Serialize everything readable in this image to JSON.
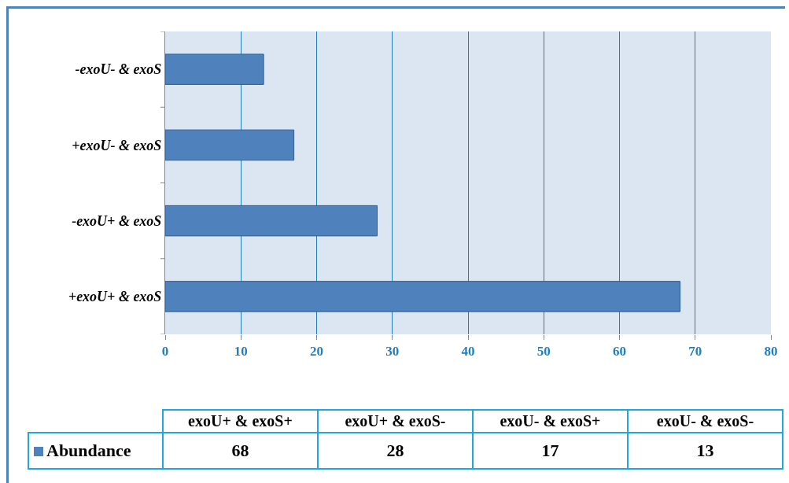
{
  "chart_data": [
    {
      "type": "bar",
      "orientation": "horizontal",
      "categories": [
        "-exoU- & exoS",
        "+exoU- & exoS",
        "-exoU+ & exoS",
        "+exoU+ & exoS"
      ],
      "series": [
        {
          "color": "#4f81bd",
          "values": [
            13,
            17,
            28,
            68
          ]
        }
      ],
      "xlim": [
        0,
        80
      ],
      "xticks": [
        0,
        10,
        20,
        30,
        40,
        50,
        60,
        70,
        80
      ],
      "grid": "x"
    },
    {
      "type": "other",
      "categories": [
        "exoU+ & exoS+",
        "exoU+ & exoS-",
        "exoU- & exoS+",
        "exoU- & exoS-"
      ],
      "series": [
        {
          "name": "Abundance",
          "color": "#4f81bd",
          "values": [
            68,
            28,
            17,
            13
          ]
        }
      ],
      "legend": "left",
      "data_labels": true
    }
  ]
}
